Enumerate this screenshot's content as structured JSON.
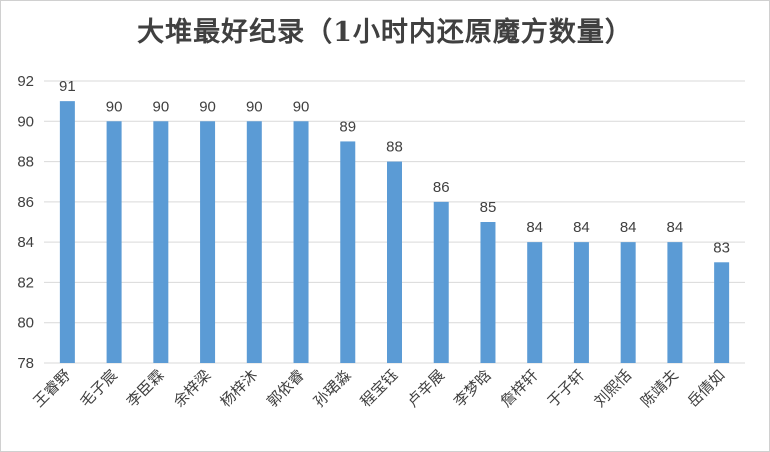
{
  "chart_data": {
    "type": "bar",
    "title": "大堆最好纪录（1小时内还原魔方数量）",
    "categories": [
      "王睿野",
      "毛子宸",
      "李臣霖",
      "余梓梁",
      "杨梓沐",
      "郭依睿",
      "孙珺淼",
      "程宝钰",
      "卢辛展",
      "李梦晗",
      "詹梓轩",
      "于子轩",
      "刘熙恬",
      "陈靖夫",
      "岳倩如"
    ],
    "values": [
      91,
      90,
      90,
      90,
      90,
      90,
      89,
      88,
      86,
      85,
      84,
      84,
      84,
      84,
      83
    ],
    "xlabel": "",
    "ylabel": "",
    "ylim": [
      78,
      92
    ],
    "yticks": [
      78,
      80,
      82,
      84,
      86,
      88,
      90,
      92
    ],
    "grid": true,
    "bar_color": "#5b9bd5",
    "grid_color": "#d9d9d9",
    "text_color": "#404040"
  }
}
